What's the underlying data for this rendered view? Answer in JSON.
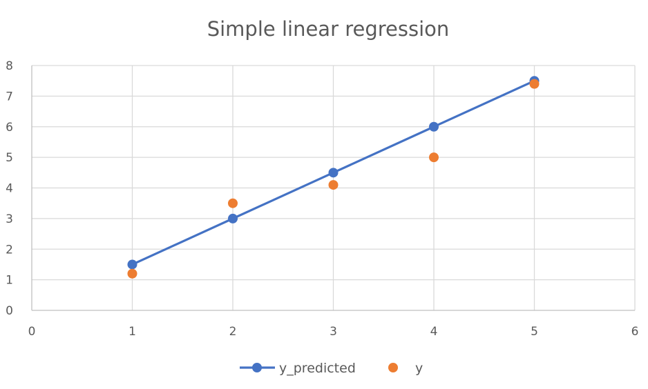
{
  "chart_data": {
    "type": "scatter",
    "title": "Simple linear regression",
    "xlabel": "",
    "ylabel": "",
    "xlim": [
      0,
      6
    ],
    "ylim": [
      0,
      8
    ],
    "x_ticks": [
      0,
      1,
      2,
      3,
      4,
      5,
      6
    ],
    "y_ticks": [
      0,
      1,
      2,
      3,
      4,
      5,
      6,
      7,
      8
    ],
    "grid": true,
    "legend_position": "bottom",
    "series": [
      {
        "name": "y_predicted",
        "kind": "line-with-markers",
        "color": "#4472C4",
        "x": [
          1,
          2,
          3,
          4,
          5
        ],
        "y": [
          1.5,
          3.0,
          4.5,
          6.0,
          7.5
        ]
      },
      {
        "name": "y",
        "kind": "markers",
        "color": "#ED7D31",
        "x": [
          1,
          2,
          3,
          4,
          5
        ],
        "y": [
          1.2,
          3.5,
          4.1,
          5.0,
          7.4
        ]
      }
    ]
  }
}
